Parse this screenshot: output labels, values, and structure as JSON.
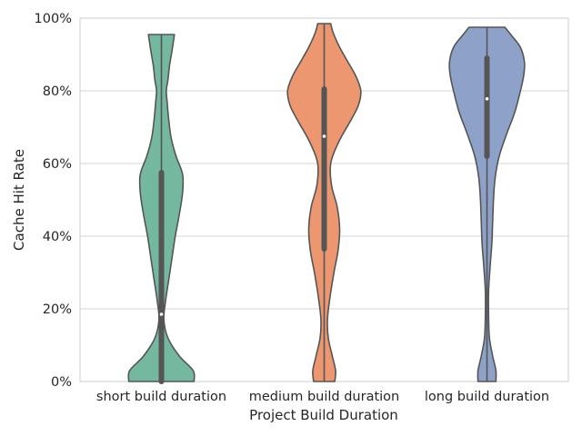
{
  "chart_data": {
    "type": "violin",
    "xlabel": "Project Build Duration",
    "ylabel": "Cache Hit Rate",
    "ylim": [
      0,
      1
    ],
    "grid": "horizontal",
    "legend": "none",
    "y_ticks": [
      {
        "value": 0.0,
        "label": "0%"
      },
      {
        "value": 0.2,
        "label": "20%"
      },
      {
        "value": 0.4,
        "label": "40%"
      },
      {
        "value": 0.6,
        "label": "60%"
      },
      {
        "value": 0.8,
        "label": "80%"
      },
      {
        "value": 1.0,
        "label": "100%"
      }
    ],
    "categories": [
      "short build duration",
      "medium build duration",
      "long build duration"
    ],
    "violins": [
      {
        "category": "short build duration",
        "color": "#73b89f",
        "min": 0.0,
        "max": 0.955,
        "q1": 0.0,
        "median": 0.185,
        "q3": 0.575,
        "density": [
          [
            0.0,
            0.4
          ],
          [
            0.03,
            0.39
          ],
          [
            0.07,
            0.22
          ],
          [
            0.12,
            0.08
          ],
          [
            0.17,
            0.03
          ],
          [
            0.22,
            0.05
          ],
          [
            0.28,
            0.09
          ],
          [
            0.34,
            0.13
          ],
          [
            0.4,
            0.17
          ],
          [
            0.46,
            0.22
          ],
          [
            0.52,
            0.26
          ],
          [
            0.57,
            0.26
          ],
          [
            0.62,
            0.18
          ],
          [
            0.67,
            0.12
          ],
          [
            0.72,
            0.09
          ],
          [
            0.77,
            0.07
          ],
          [
            0.8,
            0.06
          ],
          [
            0.83,
            0.08
          ],
          [
            0.87,
            0.1
          ],
          [
            0.91,
            0.13
          ],
          [
            0.955,
            0.16
          ]
        ]
      },
      {
        "category": "medium build duration",
        "color": "#ec9770",
        "min": 0.0,
        "max": 0.985,
        "q1": 0.365,
        "median": 0.675,
        "q3": 0.805,
        "density": [
          [
            0.0,
            0.13
          ],
          [
            0.03,
            0.14
          ],
          [
            0.07,
            0.1
          ],
          [
            0.12,
            0.05
          ],
          [
            0.17,
            0.04
          ],
          [
            0.23,
            0.07
          ],
          [
            0.3,
            0.12
          ],
          [
            0.36,
            0.17
          ],
          [
            0.42,
            0.19
          ],
          [
            0.48,
            0.16
          ],
          [
            0.54,
            0.09
          ],
          [
            0.6,
            0.08
          ],
          [
            0.66,
            0.18
          ],
          [
            0.72,
            0.33
          ],
          [
            0.76,
            0.42
          ],
          [
            0.8,
            0.45
          ],
          [
            0.84,
            0.39
          ],
          [
            0.88,
            0.29
          ],
          [
            0.92,
            0.19
          ],
          [
            0.96,
            0.11
          ],
          [
            0.985,
            0.08
          ]
        ]
      },
      {
        "category": "long build duration",
        "color": "#8ea1c9",
        "min": 0.0,
        "max": 0.975,
        "q1": 0.62,
        "median": 0.778,
        "q3": 0.89,
        "density": [
          [
            0.0,
            0.11
          ],
          [
            0.03,
            0.11
          ],
          [
            0.07,
            0.07
          ],
          [
            0.12,
            0.03
          ],
          [
            0.18,
            0.02
          ],
          [
            0.25,
            0.02
          ],
          [
            0.32,
            0.04
          ],
          [
            0.38,
            0.06
          ],
          [
            0.44,
            0.07
          ],
          [
            0.5,
            0.08
          ],
          [
            0.56,
            0.1
          ],
          [
            0.62,
            0.15
          ],
          [
            0.68,
            0.24
          ],
          [
            0.74,
            0.34
          ],
          [
            0.79,
            0.4
          ],
          [
            0.84,
            0.45
          ],
          [
            0.88,
            0.46
          ],
          [
            0.92,
            0.41
          ],
          [
            0.95,
            0.31
          ],
          [
            0.975,
            0.22
          ]
        ]
      }
    ]
  }
}
